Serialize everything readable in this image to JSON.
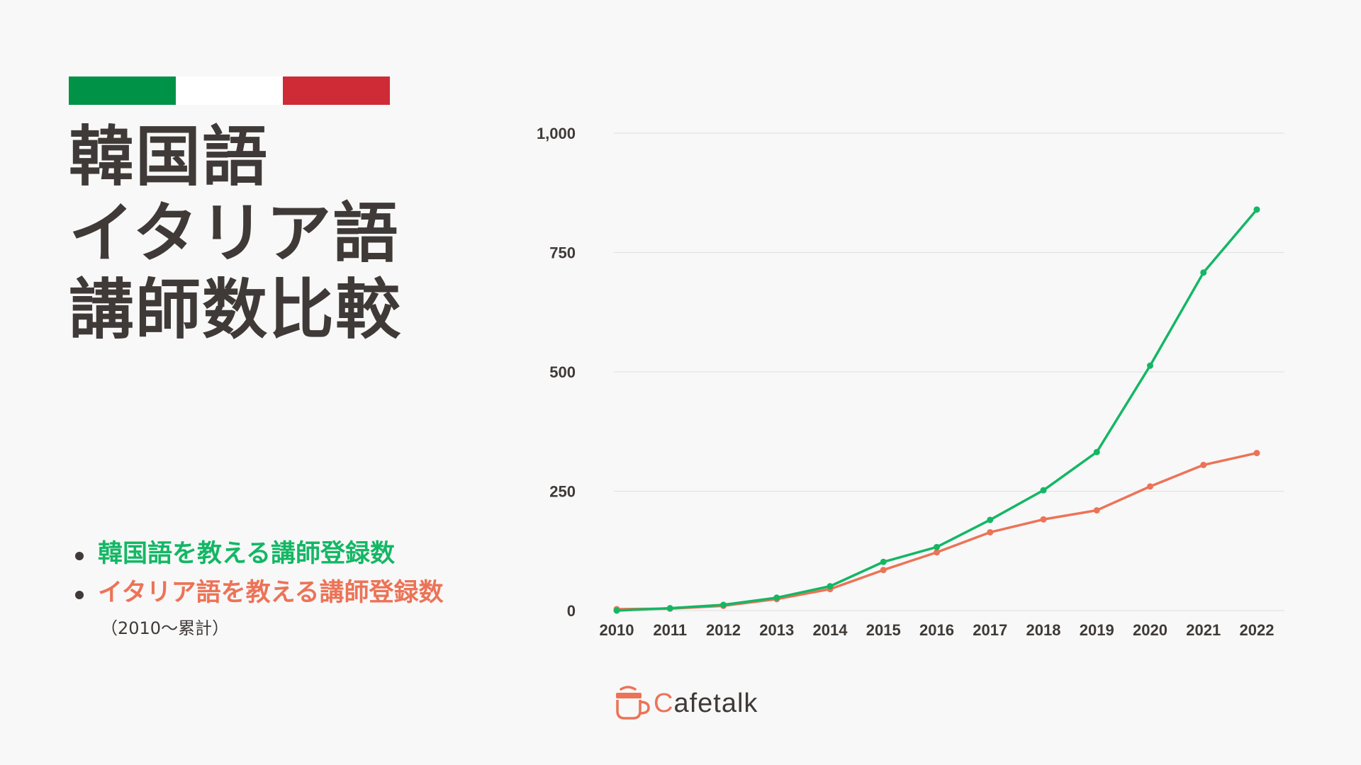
{
  "flag": {
    "colors": [
      "#009246",
      "#ffffff",
      "#ce2b37"
    ]
  },
  "title": {
    "lines": [
      "韓国語",
      "イタリア語",
      "講師数比較"
    ],
    "color": "#3f3a37"
  },
  "legend": {
    "items": [
      {
        "label": "韓国語を教える講師登録数",
        "color": "#13b765"
      },
      {
        "label": "イタリア語を教える講師登録数",
        "color": "#ec7357"
      }
    ],
    "note": "（2010〜累計）"
  },
  "logo": {
    "text": "afetalk",
    "initial": "C",
    "color": "#ec7357"
  },
  "chart_data": {
    "type": "line",
    "categories": [
      "2010",
      "2011",
      "2012",
      "2013",
      "2014",
      "2015",
      "2016",
      "2017",
      "2018",
      "2019",
      "2020",
      "2021",
      "2022"
    ],
    "series": [
      {
        "name": "韓国語を教える講師登録数",
        "color": "#13b765",
        "values": [
          0,
          5,
          12,
          27,
          51,
          102,
          133,
          190,
          252,
          332,
          513,
          708,
          840
        ]
      },
      {
        "name": "イタリア語を教える講師登録数",
        "color": "#ec7357",
        "values": [
          3,
          4,
          10,
          24,
          45,
          85,
          122,
          164,
          191,
          210,
          260,
          305,
          330
        ]
      }
    ],
    "yticks": [
      "0",
      "250",
      "500",
      "750",
      "1,000"
    ],
    "ytick_values": [
      0,
      250,
      500,
      750,
      1000
    ],
    "ylim": [
      0,
      1000
    ],
    "grid": true,
    "gridColor": "#e3e3e3"
  }
}
